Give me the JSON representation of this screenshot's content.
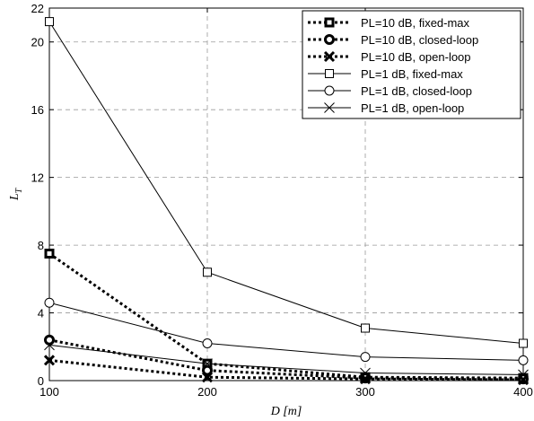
{
  "chart_data": {
    "type": "line",
    "xlabel": "D [m]",
    "ylabel": "L",
    "ylabel_subscript": "T",
    "xlim": [
      100,
      400
    ],
    "ylim": [
      0,
      22
    ],
    "xticks": [
      100,
      200,
      300,
      400
    ],
    "yticks": [
      0,
      4,
      8,
      12,
      16,
      20,
      22
    ],
    "grid": true,
    "legend_position": "top-right",
    "x": [
      100,
      200,
      300,
      400
    ],
    "series": [
      {
        "name": "PL=10 dB, fixed-max",
        "values": [
          7.5,
          1.0,
          0.2,
          0.15
        ],
        "marker": "square",
        "style": "dotted"
      },
      {
        "name": "PL=10 dB, closed-loop",
        "values": [
          2.4,
          0.6,
          0.15,
          0.1
        ],
        "marker": "circle",
        "style": "dotted"
      },
      {
        "name": "PL=10 dB, open-loop",
        "values": [
          1.2,
          0.2,
          0.1,
          0.05
        ],
        "marker": "cross",
        "style": "dotted"
      },
      {
        "name": "PL=1 dB, fixed-max",
        "values": [
          21.2,
          6.4,
          3.1,
          2.2
        ],
        "marker": "square",
        "style": "solid"
      },
      {
        "name": "PL=1 dB, closed-loop",
        "values": [
          4.6,
          2.2,
          1.4,
          1.2
        ],
        "marker": "circle",
        "style": "solid"
      },
      {
        "name": "PL=1 dB, open-loop",
        "values": [
          2.1,
          1.0,
          0.45,
          0.35
        ],
        "marker": "cross",
        "style": "solid"
      }
    ]
  }
}
